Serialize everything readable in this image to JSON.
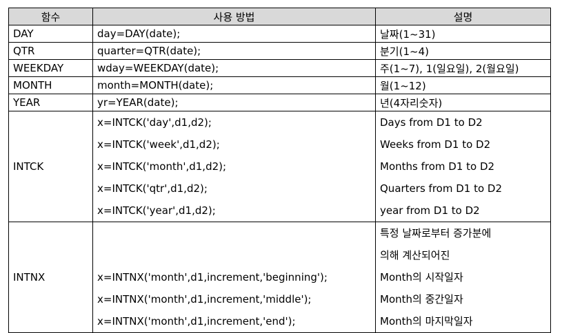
{
  "header": {
    "col_function": "함수",
    "col_usage": "사용 방법",
    "col_description": "설명"
  },
  "rows_simple": [
    {
      "name": "DAY",
      "usage": "day=DAY(date);",
      "desc": "날짜(1~31)"
    },
    {
      "name": "QTR",
      "usage": "quarter=QTR(date);",
      "desc": "분기(1~4)"
    },
    {
      "name": "WEEKDAY",
      "usage": "wday=WEEKDAY(date);",
      "desc": "주(1~7), 1(일요일), 2(월요일)"
    },
    {
      "name": "MONTH",
      "usage": "month=MONTH(date);",
      "desc": "월(1~12)"
    },
    {
      "name": "YEAR",
      "usage": "yr=YEAR(date);",
      "desc": "년(4자리숫자)"
    }
  ],
  "intck": {
    "name": "INTCK",
    "usages": [
      "x=INTCK('day',d1,d2);",
      "x=INTCK('week',d1,d2);",
      "x=INTCK('month',d1,d2);",
      "x=INTCK('qtr',d1,d2);",
      "x=INTCK('year',d1,d2);"
    ],
    "descs": [
      "Days from D1 to D2",
      "Weeks from D1 to D2",
      "Months from D1 to D2",
      "Quarters from D1 to D2",
      "year from D1 to D2"
    ]
  },
  "intnx": {
    "name": "INTNX",
    "usages": [
      "",
      "",
      "x=INTNX('month',d1,increment,'beginning');",
      "x=INTNX('month',d1,increment,'middle');",
      "x=INTNX('month',d1,increment,'end');"
    ],
    "descs": [
      "특정 날짜로부터 증가분에",
      "의해 계산되어진",
      "Month의 시작일자",
      "Month의 중간일자",
      "Month의 마지막일자"
    ]
  }
}
